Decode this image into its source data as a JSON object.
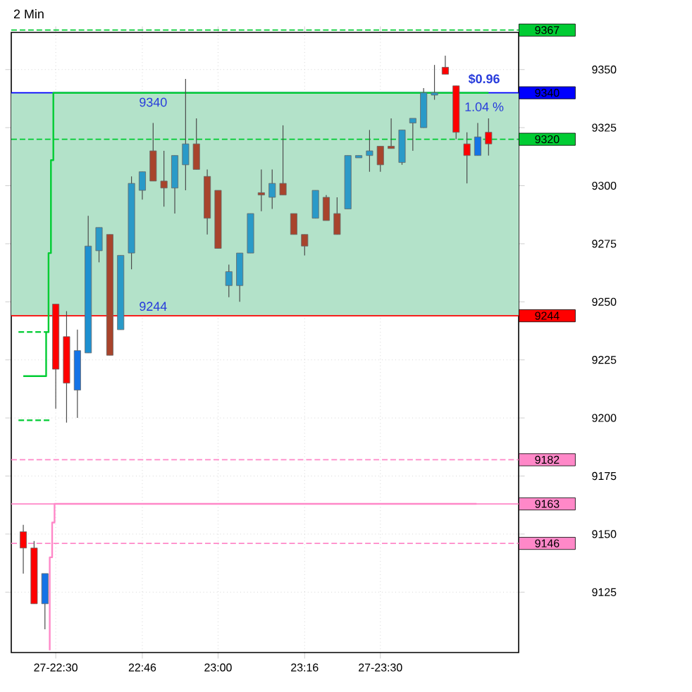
{
  "chart_data": {
    "type": "candlestick",
    "title": "2 Min",
    "x": [
      22.4,
      22.4333,
      22.4667,
      22.5,
      22.5333,
      22.5667,
      22.6,
      22.6333,
      22.6667,
      22.7,
      22.7333,
      22.7667,
      22.8,
      22.8333,
      22.8667,
      22.9,
      22.9333,
      22.9667,
      23.0,
      23.0333,
      23.0667,
      23.1,
      23.1333,
      23.1667,
      23.2,
      23.2333,
      23.2667,
      23.3,
      23.3333,
      23.3667,
      23.4,
      23.4333,
      23.4667,
      23.5,
      23.5333,
      23.5667,
      23.6,
      23.6333,
      23.6667,
      23.7,
      23.7333,
      23.7667,
      23.8,
      23.8333
    ],
    "ohlc": [
      [
        9151,
        9154,
        9133,
        9144
      ],
      [
        9144,
        9147,
        9120,
        9120
      ],
      [
        9120,
        9133,
        9109,
        9133
      ],
      [
        9249,
        9249,
        9204,
        9221
      ],
      [
        9235,
        9246,
        9198,
        9215
      ],
      [
        9212,
        9238,
        9200,
        9229
      ],
      [
        9228,
        9287,
        9228,
        9274
      ],
      [
        9272,
        9282,
        9267,
        9282
      ],
      [
        9279,
        9279,
        9227,
        9227
      ],
      [
        9238,
        9270,
        9238,
        9270
      ],
      [
        9271,
        9304,
        9264,
        9301
      ],
      [
        9298,
        9306,
        9294,
        9306
      ],
      [
        9315,
        9327,
        9302,
        9302
      ],
      [
        9302,
        9315,
        9291,
        9299
      ],
      [
        9299,
        9313,
        9288,
        9313
      ],
      [
        9309,
        9346,
        9298,
        9318
      ],
      [
        9318,
        9329,
        9307,
        9307
      ],
      [
        9304,
        9307,
        9279,
        9286
      ],
      [
        9298,
        9298,
        9273,
        9273
      ],
      [
        9257,
        9266,
        9252,
        9263
      ],
      [
        9257,
        9271,
        9250,
        9271
      ],
      [
        9271,
        9288,
        9271,
        9288
      ],
      [
        9297,
        9307,
        9289,
        9296
      ],
      [
        9295,
        9307,
        9290,
        9301
      ],
      [
        9301,
        9326,
        9296,
        9296
      ],
      [
        9288,
        9288,
        9279,
        9279
      ],
      [
        9279,
        9279,
        9270,
        9274
      ],
      [
        9286,
        9298,
        9286,
        9298
      ],
      [
        9295,
        9296,
        9285,
        9285
      ],
      [
        9288,
        9295,
        9279,
        9279
      ],
      [
        9290,
        9313,
        9290,
        9313
      ],
      [
        9312,
        9313,
        9312,
        9313
      ],
      [
        9313,
        9324,
        9306,
        9315
      ],
      [
        9317,
        9317,
        9306,
        9309
      ],
      [
        9317,
        9329,
        9316,
        9316
      ],
      [
        9310,
        9324,
        9309,
        9324
      ],
      [
        9327,
        9329,
        9315,
        9329
      ],
      [
        9325,
        9342,
        9325,
        9340
      ],
      [
        9339,
        9352,
        9337,
        9340
      ],
      [
        9351,
        9356,
        9348,
        9348
      ],
      [
        9343,
        9343,
        9320,
        9323
      ],
      [
        9318,
        9323,
        9301,
        9313
      ],
      [
        9313,
        9327,
        9313,
        9321
      ],
      [
        9323,
        9329,
        9313,
        9318
      ]
    ],
    "colors": [
      "#ff0000",
      "#ff0000",
      "#1473e6",
      "#ff0000",
      "#ff0000",
      "#1473e6",
      "#1e90d0",
      "#2a9ac8",
      "#a8442c",
      "#2a9ac8",
      "#2a9ac8",
      "#2a9ac8",
      "#a8442c",
      "#a8442c",
      "#2a9ac8",
      "#2a9ac8",
      "#a8442c",
      "#a8442c",
      "#a8442c",
      "#2a9ac8",
      "#2a9ac8",
      "#2a9ac8",
      "#a8442c",
      "#2a9ac8",
      "#a8442c",
      "#a8442c",
      "#a8442c",
      "#2a9ac8",
      "#a8442c",
      "#a8442c",
      "#2a9ac8",
      "#2a9ac8",
      "#2a9ac8",
      "#a8442c",
      "#a8442c",
      "#2a9ac8",
      "#2a9ac8",
      "#2a9ac8",
      "#2a9ac8",
      "#ff0000",
      "#ff0000",
      "#ff0000",
      "#1473e6",
      "#ff0000"
    ],
    "series": [
      {
        "type": "line",
        "color": "#00cc33",
        "x": [
          22.4,
          22.4704,
          22.4704,
          22.4778,
          22.4778,
          22.4852,
          22.4852,
          22.4926,
          22.4926,
          23.8333
        ],
        "values": [
          9218,
          9218,
          9237,
          9237,
          9271,
          9271,
          9311,
          9311,
          9340,
          9340
        ]
      },
      {
        "type": "line",
        "color": "#ff88c8",
        "x": [
          22.4815,
          22.4815,
          22.4889,
          22.4889,
          22.4963,
          22.4963,
          23.7963
        ],
        "values": [
          9100,
          9140,
          9140,
          9155,
          9155,
          9163,
          9163
        ]
      },
      {
        "type": "line",
        "color": "#00cc33",
        "line_style": "dashed",
        "x": [
          22.3852,
          22.4815
        ],
        "values": [
          9237,
          9237
        ]
      },
      {
        "type": "line",
        "color": "#00cc33",
        "line_style": "dashed",
        "x": [
          22.3852,
          22.4815
        ],
        "values": [
          9199,
          9199
        ]
      }
    ],
    "bands": [
      {
        "axis": "y",
        "from": 9244,
        "to": 9340,
        "color": "#b3e2c9"
      }
    ],
    "ref_lines": [
      {
        "axis": "y",
        "value": 9367,
        "label": "9367",
        "color": "#00cc33",
        "line_style": "dashed"
      },
      {
        "axis": "y",
        "value": 9340,
        "label": "9340",
        "color": "#0000ff",
        "line_style": "solid"
      },
      {
        "axis": "y",
        "value": 9320,
        "label": "9320",
        "color": "#00cc33",
        "line_style": "dashed"
      },
      {
        "axis": "y",
        "value": 9244,
        "label": "9244",
        "color": "#ff0000",
        "line_style": "solid"
      },
      {
        "axis": "y",
        "value": 9182,
        "label": "9182",
        "color": "#ff88c8",
        "line_style": "dashed"
      },
      {
        "axis": "y",
        "value": 9163,
        "label": "9163",
        "color": "#ff88c8",
        "line_style": "solid"
      },
      {
        "axis": "y",
        "value": 9146,
        "label": "9146",
        "color": "#ff88c8",
        "line_style": "dashed"
      }
    ],
    "annotations": [
      {
        "text": "9340",
        "x": 22.8,
        "y": 9340
      },
      {
        "text": "9244",
        "x": 22.8,
        "y": 9244
      },
      "**$0.96**",
      "1.04 %"
    ],
    "xlim": [
      22.363,
      23.926
    ],
    "ylim": [
      9099,
      9366
    ],
    "xticks": [
      {
        "value": 22.5,
        "label": "27-22:30"
      },
      {
        "value": 22.7667,
        "label": "22:46"
      },
      {
        "value": 23.0,
        "label": "23:00"
      },
      {
        "value": 23.2667,
        "label": "23:16"
      },
      {
        "value": 23.5,
        "label": "27-23:30"
      }
    ],
    "yticks": [
      9125,
      9150,
      9175,
      9200,
      9225,
      9250,
      9275,
      9300,
      9325,
      9350
    ],
    "grid": true
  }
}
